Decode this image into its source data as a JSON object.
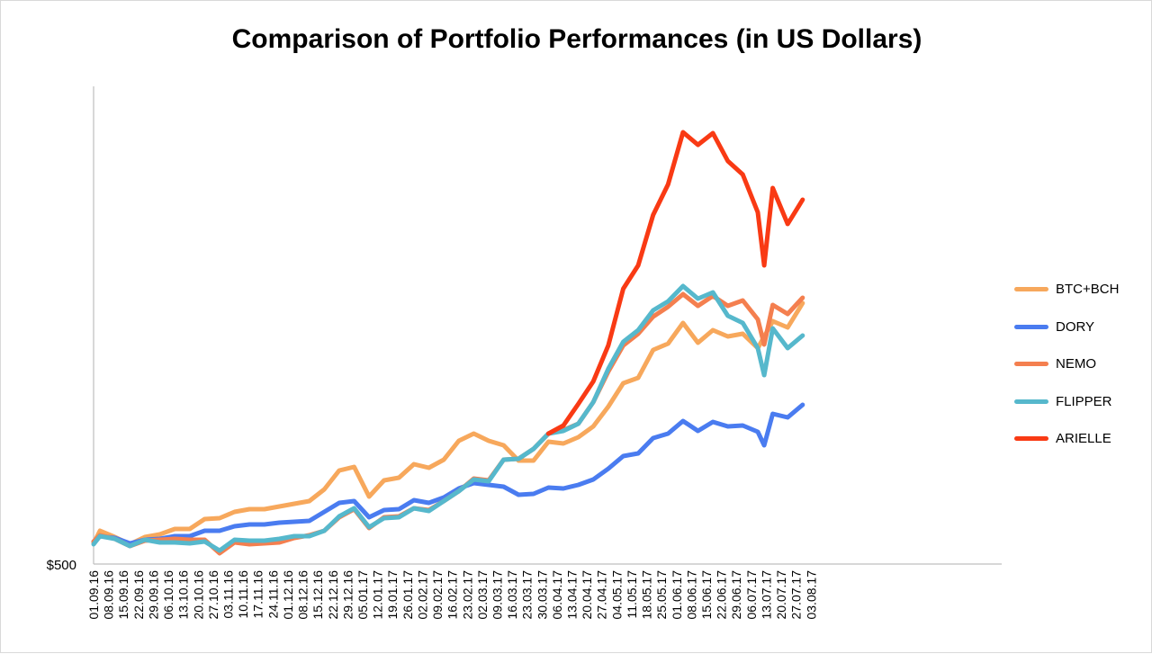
{
  "chart_data": {
    "type": "line",
    "title": "Comparison of Portfolio Performances (in US Dollars)",
    "xlabel": "",
    "ylabel": "",
    "y_tick_labels": [
      "$500"
    ],
    "grid": false,
    "legend_position": "right",
    "x": [
      "01.09.16",
      "08.09.16",
      "15.09.16",
      "22.09.16",
      "29.09.16",
      "06.10.16",
      "13.10.16",
      "20.10.16",
      "27.10.16",
      "03.11.16",
      "10.11.16",
      "17.11.16",
      "24.11.16",
      "01.12.16",
      "08.12.16",
      "15.12.16",
      "22.12.16",
      "29.12.16",
      "05.01.17",
      "12.01.17",
      "19.01.17",
      "26.01.17",
      "02.02.17",
      "09.02.17",
      "16.02.17",
      "23.02.17",
      "02.03.17",
      "09.03.17",
      "16.03.17",
      "23.03.17",
      "30.03.17",
      "06.04.17",
      "13.04.17",
      "20.04.17",
      "27.04.17",
      "04.05.17",
      "11.05.17",
      "18.05.17",
      "25.05.17",
      "01.06.17",
      "08.06.17",
      "15.06.17",
      "22.06.17",
      "29.06.17",
      "06.07.17",
      "13.07.17",
      "20.07.17",
      "27.07.17",
      "03.08.17"
    ],
    "series": [
      {
        "name": "BTC+BCH",
        "color": "#F7A85C",
        "values": [
          {
            "x": "01.09.16",
            "y": 23
          },
          {
            "x": "04.09.16",
            "y": 37
          },
          {
            "x": "11.09.16",
            "y": 30
          },
          {
            "x": "18.09.16",
            "y": 22
          },
          {
            "x": "25.09.16",
            "y": 30
          },
          {
            "x": "02.10.16",
            "y": 33
          },
          {
            "x": "09.10.16",
            "y": 39
          },
          {
            "x": "16.10.16",
            "y": 39
          },
          {
            "x": "23.10.16",
            "y": 50
          },
          {
            "x": "30.10.16",
            "y": 51
          },
          {
            "x": "06.11.16",
            "y": 58
          },
          {
            "x": "13.11.16",
            "y": 61
          },
          {
            "x": "20.11.16",
            "y": 61
          },
          {
            "x": "27.11.16",
            "y": 64
          },
          {
            "x": "04.12.16",
            "y": 67
          },
          {
            "x": "11.12.16",
            "y": 70
          },
          {
            "x": "18.12.16",
            "y": 83
          },
          {
            "x": "25.12.16",
            "y": 104
          },
          {
            "x": "01.01.17",
            "y": 108
          },
          {
            "x": "08.01.17",
            "y": 75
          },
          {
            "x": "15.01.17",
            "y": 93
          },
          {
            "x": "22.01.17",
            "y": 96
          },
          {
            "x": "29.01.17",
            "y": 111
          },
          {
            "x": "05.02.17",
            "y": 107
          },
          {
            "x": "12.02.17",
            "y": 116
          },
          {
            "x": "19.02.17",
            "y": 137
          },
          {
            "x": "26.02.17",
            "y": 145
          },
          {
            "x": "05.03.17",
            "y": 137
          },
          {
            "x": "12.03.17",
            "y": 132
          },
          {
            "x": "19.03.17",
            "y": 115
          },
          {
            "x": "26.03.17",
            "y": 115
          },
          {
            "x": "02.04.17",
            "y": 136
          },
          {
            "x": "09.04.17",
            "y": 134
          },
          {
            "x": "16.04.17",
            "y": 141
          },
          {
            "x": "23.04.17",
            "y": 153
          },
          {
            "x": "30.04.17",
            "y": 175
          },
          {
            "x": "07.05.17",
            "y": 201
          },
          {
            "x": "14.05.17",
            "y": 207
          },
          {
            "x": "21.05.17",
            "y": 238
          },
          {
            "x": "28.05.17",
            "y": 245
          },
          {
            "x": "04.06.17",
            "y": 268
          },
          {
            "x": "11.06.17",
            "y": 246
          },
          {
            "x": "18.06.17",
            "y": 260
          },
          {
            "x": "25.06.17",
            "y": 253
          },
          {
            "x": "02.07.17",
            "y": 256
          },
          {
            "x": "09.07.17",
            "y": 240
          },
          {
            "x": "16.07.17",
            "y": 270
          },
          {
            "x": "23.07.17",
            "y": 263
          },
          {
            "x": "30.07.17",
            "y": 290
          }
        ]
      },
      {
        "name": "DORY",
        "color": "#4A7CF0",
        "values": [
          {
            "x": "01.09.16",
            "y": 25
          },
          {
            "x": "04.09.16",
            "y": 31
          },
          {
            "x": "11.09.16",
            "y": 29
          },
          {
            "x": "18.09.16",
            "y": 23
          },
          {
            "x": "25.09.16",
            "y": 27
          },
          {
            "x": "02.10.16",
            "y": 28
          },
          {
            "x": "09.10.16",
            "y": 31
          },
          {
            "x": "16.10.16",
            "y": 31
          },
          {
            "x": "23.10.16",
            "y": 37
          },
          {
            "x": "30.10.16",
            "y": 37
          },
          {
            "x": "06.11.16",
            "y": 42
          },
          {
            "x": "13.11.16",
            "y": 44
          },
          {
            "x": "20.11.16",
            "y": 44
          },
          {
            "x": "27.11.16",
            "y": 46
          },
          {
            "x": "04.12.16",
            "y": 47
          },
          {
            "x": "11.12.16",
            "y": 48
          },
          {
            "x": "18.12.16",
            "y": 58
          },
          {
            "x": "25.12.16",
            "y": 68
          },
          {
            "x": "01.01.17",
            "y": 70
          },
          {
            "x": "08.01.17",
            "y": 52
          },
          {
            "x": "15.01.17",
            "y": 60
          },
          {
            "x": "22.01.17",
            "y": 61
          },
          {
            "x": "29.01.17",
            "y": 71
          },
          {
            "x": "05.02.17",
            "y": 68
          },
          {
            "x": "12.02.17",
            "y": 74
          },
          {
            "x": "19.02.17",
            "y": 84
          },
          {
            "x": "26.02.17",
            "y": 90
          },
          {
            "x": "05.03.17",
            "y": 88
          },
          {
            "x": "12.03.17",
            "y": 86
          },
          {
            "x": "19.03.17",
            "y": 77
          },
          {
            "x": "26.03.17",
            "y": 78
          },
          {
            "x": "02.04.17",
            "y": 85
          },
          {
            "x": "09.04.17",
            "y": 84
          },
          {
            "x": "16.04.17",
            "y": 88
          },
          {
            "x": "23.04.17",
            "y": 94
          },
          {
            "x": "30.04.17",
            "y": 106
          },
          {
            "x": "07.05.17",
            "y": 120
          },
          {
            "x": "14.05.17",
            "y": 123
          },
          {
            "x": "21.05.17",
            "y": 140
          },
          {
            "x": "28.05.17",
            "y": 145
          },
          {
            "x": "04.06.17",
            "y": 159
          },
          {
            "x": "11.06.17",
            "y": 148
          },
          {
            "x": "18.06.17",
            "y": 158
          },
          {
            "x": "25.06.17",
            "y": 153
          },
          {
            "x": "02.07.17",
            "y": 154
          },
          {
            "x": "09.07.17",
            "y": 147
          },
          {
            "x": "12.07.17",
            "y": 132
          },
          {
            "x": "16.07.17",
            "y": 167
          },
          {
            "x": "23.07.17",
            "y": 163
          },
          {
            "x": "30.07.17",
            "y": 177
          }
        ]
      },
      {
        "name": "NEMO",
        "color": "#F47F4F",
        "values": [
          {
            "x": "01.09.16",
            "y": 25
          },
          {
            "x": "04.09.16",
            "y": 32
          },
          {
            "x": "11.09.16",
            "y": 28
          },
          {
            "x": "18.09.16",
            "y": 20
          },
          {
            "x": "25.09.16",
            "y": 26
          },
          {
            "x": "02.10.16",
            "y": 27
          },
          {
            "x": "09.10.16",
            "y": 28
          },
          {
            "x": "16.10.16",
            "y": 27
          },
          {
            "x": "23.10.16",
            "y": 27
          },
          {
            "x": "30.10.16",
            "y": 12
          },
          {
            "x": "06.11.16",
            "y": 24
          },
          {
            "x": "13.11.16",
            "y": 22
          },
          {
            "x": "20.11.16",
            "y": 23
          },
          {
            "x": "27.11.16",
            "y": 24
          },
          {
            "x": "04.12.16",
            "y": 29
          },
          {
            "x": "11.12.16",
            "y": 32
          },
          {
            "x": "18.12.16",
            "y": 37
          },
          {
            "x": "25.12.16",
            "y": 52
          },
          {
            "x": "01.01.17",
            "y": 61
          },
          {
            "x": "08.01.17",
            "y": 40
          },
          {
            "x": "15.01.17",
            "y": 52
          },
          {
            "x": "22.01.17",
            "y": 53
          },
          {
            "x": "29.01.17",
            "y": 62
          },
          {
            "x": "05.02.17",
            "y": 60
          },
          {
            "x": "12.02.17",
            "y": 70
          },
          {
            "x": "19.02.17",
            "y": 81
          },
          {
            "x": "26.02.17",
            "y": 95
          },
          {
            "x": "05.03.17",
            "y": 93
          },
          {
            "x": "12.03.17",
            "y": 116
          },
          {
            "x": "19.03.17",
            "y": 117
          },
          {
            "x": "26.03.17",
            "y": 128
          },
          {
            "x": "02.04.17",
            "y": 145
          },
          {
            "x": "09.04.17",
            "y": 149
          },
          {
            "x": "16.04.17",
            "y": 156
          },
          {
            "x": "23.04.17",
            "y": 180
          },
          {
            "x": "30.04.17",
            "y": 214
          },
          {
            "x": "07.05.17",
            "y": 243
          },
          {
            "x": "14.05.17",
            "y": 256
          },
          {
            "x": "21.05.17",
            "y": 275
          },
          {
            "x": "28.05.17",
            "y": 286
          },
          {
            "x": "04.06.17",
            "y": 300
          },
          {
            "x": "11.06.17",
            "y": 287
          },
          {
            "x": "18.06.17",
            "y": 298
          },
          {
            "x": "25.06.17",
            "y": 287
          },
          {
            "x": "02.07.17",
            "y": 293
          },
          {
            "x": "09.07.17",
            "y": 272
          },
          {
            "x": "12.07.17",
            "y": 244
          },
          {
            "x": "16.07.17",
            "y": 288
          },
          {
            "x": "23.07.17",
            "y": 278
          },
          {
            "x": "30.07.17",
            "y": 296
          }
        ]
      },
      {
        "name": "FLIPPER",
        "color": "#56B8CC",
        "values": [
          {
            "x": "01.09.16",
            "y": 22
          },
          {
            "x": "04.09.16",
            "y": 31
          },
          {
            "x": "11.09.16",
            "y": 28
          },
          {
            "x": "18.09.16",
            "y": 20
          },
          {
            "x": "25.09.16",
            "y": 27
          },
          {
            "x": "02.10.16",
            "y": 24
          },
          {
            "x": "09.10.16",
            "y": 24
          },
          {
            "x": "16.10.16",
            "y": 23
          },
          {
            "x": "23.10.16",
            "y": 25
          },
          {
            "x": "30.10.16",
            "y": 15
          },
          {
            "x": "06.11.16",
            "y": 27
          },
          {
            "x": "13.11.16",
            "y": 26
          },
          {
            "x": "20.11.16",
            "y": 26
          },
          {
            "x": "27.11.16",
            "y": 28
          },
          {
            "x": "04.12.16",
            "y": 31
          },
          {
            "x": "11.12.16",
            "y": 31
          },
          {
            "x": "18.12.16",
            "y": 37
          },
          {
            "x": "25.12.16",
            "y": 53
          },
          {
            "x": "01.01.17",
            "y": 62
          },
          {
            "x": "08.01.17",
            "y": 41
          },
          {
            "x": "15.01.17",
            "y": 51
          },
          {
            "x": "22.01.17",
            "y": 52
          },
          {
            "x": "29.01.17",
            "y": 62
          },
          {
            "x": "05.02.17",
            "y": 59
          },
          {
            "x": "12.02.17",
            "y": 70
          },
          {
            "x": "19.02.17",
            "y": 81
          },
          {
            "x": "26.02.17",
            "y": 94
          },
          {
            "x": "05.03.17",
            "y": 92
          },
          {
            "x": "12.03.17",
            "y": 116
          },
          {
            "x": "19.03.17",
            "y": 117
          },
          {
            "x": "26.03.17",
            "y": 128
          },
          {
            "x": "02.04.17",
            "y": 145
          },
          {
            "x": "09.04.17",
            "y": 148
          },
          {
            "x": "16.04.17",
            "y": 156
          },
          {
            "x": "23.04.17",
            "y": 180
          },
          {
            "x": "30.04.17",
            "y": 217
          },
          {
            "x": "07.05.17",
            "y": 247
          },
          {
            "x": "14.05.17",
            "y": 260
          },
          {
            "x": "21.05.17",
            "y": 282
          },
          {
            "x": "28.05.17",
            "y": 292
          },
          {
            "x": "04.06.17",
            "y": 309
          },
          {
            "x": "11.06.17",
            "y": 295
          },
          {
            "x": "18.06.17",
            "y": 302
          },
          {
            "x": "25.06.17",
            "y": 276
          },
          {
            "x": "02.07.17",
            "y": 268
          },
          {
            "x": "09.07.17",
            "y": 240
          },
          {
            "x": "12.07.17",
            "y": 210
          },
          {
            "x": "16.07.17",
            "y": 262
          },
          {
            "x": "23.07.17",
            "y": 240
          },
          {
            "x": "30.07.17",
            "y": 254
          }
        ]
      },
      {
        "name": "ARIELLE",
        "color": "#F93A14",
        "values": [
          {
            "x": "02.04.17",
            "y": 145
          },
          {
            "x": "09.04.17",
            "y": 154
          },
          {
            "x": "16.04.17",
            "y": 178
          },
          {
            "x": "23.04.17",
            "y": 203
          },
          {
            "x": "30.04.17",
            "y": 243
          },
          {
            "x": "07.05.17",
            "y": 306
          },
          {
            "x": "14.05.17",
            "y": 332
          },
          {
            "x": "21.05.17",
            "y": 388
          },
          {
            "x": "28.05.17",
            "y": 422
          },
          {
            "x": "04.06.17",
            "y": 480
          },
          {
            "x": "11.06.17",
            "y": 466
          },
          {
            "x": "18.06.17",
            "y": 479
          },
          {
            "x": "25.06.17",
            "y": 448
          },
          {
            "x": "02.07.17",
            "y": 433
          },
          {
            "x": "09.07.17",
            "y": 391
          },
          {
            "x": "12.07.17",
            "y": 332
          },
          {
            "x": "16.07.17",
            "y": 418
          },
          {
            "x": "23.07.17",
            "y": 378
          },
          {
            "x": "30.07.17",
            "y": 405
          }
        ]
      }
    ]
  }
}
